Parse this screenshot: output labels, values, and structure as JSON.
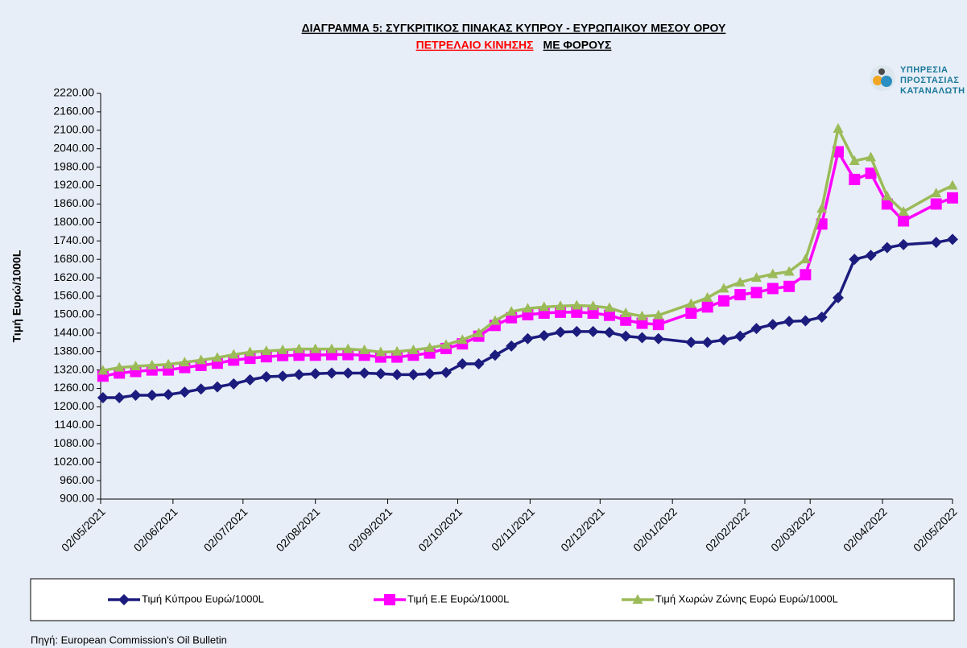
{
  "chart_data": {
    "type": "line",
    "title": "ΔΙΑΓΡΑΜΜΑ 5: ΣΥΓΚΡΙΤΙΚΟΣ ΠΙΝΑΚΑΣ ΚΥΠΡΟΥ - ΕΥΡΩΠΑΙΚΟΥ ΜΕΣΟΥ ΟΡΟΥ",
    "subtitle": [
      "ΠΕΤΡΕΛΑΙΟ ΚΙΝΗΣΗΣ",
      "ΜΕ  ΦΟΡΟΥΣ"
    ],
    "subtitle_colors": [
      "#ff0000",
      "#000000"
    ],
    "logo": [
      "ΥΠΗΡΕΣΙΑ",
      "ΠΡΟΣΤΑΣΙΑΣ",
      "ΚΑΤΑΝΑΛΩΤΗ"
    ],
    "y_label": "Τιμή Ευρώ/1000L",
    "source": "Πηγή: European Commission's Oil Bulletin",
    "x": [
      "03/05/2021",
      "10/05/2021",
      "17/05/2021",
      "24/05/2021",
      "31/05/2021",
      "07/06/2021",
      "14/06/2021",
      "21/06/2021",
      "28/06/2021",
      "05/07/2021",
      "12/07/2021",
      "19/07/2021",
      "26/07/2021",
      "02/08/2021",
      "09/08/2021",
      "16/08/2021",
      "23/08/2021",
      "30/08/2021",
      "06/09/2021",
      "13/09/2021",
      "20/09/2021",
      "27/09/2021",
      "04/10/2021",
      "11/10/2021",
      "18/10/2021",
      "25/10/2021",
      "01/11/2021",
      "08/11/2021",
      "15/11/2021",
      "22/11/2021",
      "29/11/2021",
      "06/12/2021",
      "13/12/2021",
      "20/12/2021",
      "27/12/2021",
      "10/01/2022",
      "17/01/2022",
      "24/01/2022",
      "31/01/2022",
      "07/02/2022",
      "14/02/2022",
      "21/02/2022",
      "28/02/2022",
      "07/03/2022",
      "14/03/2022",
      "21/03/2022",
      "28/03/2022",
      "04/04/2022",
      "11/04/2022",
      "25/04/2022",
      "02/05/2022"
    ],
    "series": [
      {
        "name": "Τιμή Κύπρου Ευρώ/1000L",
        "color": "#1c1c7e",
        "marker": "diamond",
        "values": [
          1230,
          1230,
          1238,
          1238,
          1240,
          1248,
          1258,
          1265,
          1275,
          1288,
          1298,
          1300,
          1305,
          1308,
          1310,
          1310,
          1310,
          1308,
          1305,
          1305,
          1308,
          1312,
          1340,
          1340,
          1368,
          1398,
          1422,
          1432,
          1443,
          1445,
          1445,
          1442,
          1430,
          1425,
          1422,
          1410,
          1410,
          1418,
          1430,
          1455,
          1468,
          1478,
          1480,
          1492,
          1555,
          1680,
          1693,
          1718,
          1728,
          1735,
          1745
        ]
      },
      {
        "name": "Τιμή Ε.Ε Ευρώ/1000L",
        "color": "#ff00ff",
        "marker": "square",
        "values": [
          1300,
          1310,
          1315,
          1320,
          1320,
          1328,
          1335,
          1342,
          1352,
          1358,
          1363,
          1367,
          1368,
          1368,
          1370,
          1370,
          1368,
          1362,
          1362,
          1368,
          1375,
          1390,
          1405,
          1430,
          1465,
          1490,
          1500,
          1505,
          1508,
          1508,
          1505,
          1498,
          1482,
          1472,
          1468,
          1505,
          1525,
          1545,
          1565,
          1572,
          1585,
          1592,
          1630,
          1795,
          2030,
          1940,
          1960,
          1860,
          1805,
          1860,
          1880
        ]
      },
      {
        "name": "Τιμή Χωρών Ζώνης Ευρώ Ευρώ/1000L",
        "color": "#9bbb59",
        "marker": "triangle",
        "values": [
          1318,
          1328,
          1332,
          1335,
          1338,
          1345,
          1352,
          1360,
          1370,
          1378,
          1382,
          1385,
          1388,
          1388,
          1388,
          1388,
          1385,
          1378,
          1380,
          1385,
          1392,
          1402,
          1418,
          1440,
          1480,
          1510,
          1520,
          1525,
          1528,
          1530,
          1528,
          1522,
          1505,
          1495,
          1498,
          1535,
          1555,
          1585,
          1605,
          1620,
          1632,
          1640,
          1680,
          1845,
          2105,
          2000,
          2012,
          1885,
          1835,
          1895,
          1920
        ]
      }
    ],
    "xlim": [
      "02/05/2021",
      "02/05/2022"
    ],
    "xticks": [
      "02/05/2021",
      "02/06/2021",
      "02/07/2021",
      "02/08/2021",
      "02/09/2021",
      "02/10/2021",
      "02/11/2021",
      "02/12/2021",
      "02/01/2022",
      "02/02/2022",
      "02/03/2022",
      "02/04/2022",
      "02/05/2022"
    ],
    "ylim": [
      900,
      2220
    ],
    "yticks": [
      {
        "value": 900,
        "label": "900.00"
      },
      {
        "value": 960,
        "label": "960.00"
      },
      {
        "value": 1020,
        "label": "1020.00"
      },
      {
        "value": 1080,
        "label": "1080.00"
      },
      {
        "value": 1140,
        "label": "1140.00"
      },
      {
        "value": 1200,
        "label": "1200.00"
      },
      {
        "value": 1260,
        "label": "1260.00"
      },
      {
        "value": 1320,
        "label": "1320.00"
      },
      {
        "value": 1380,
        "label": "1380.00"
      },
      {
        "value": 1440,
        "label": "1440.00"
      },
      {
        "value": 1500,
        "label": "1500.00"
      },
      {
        "value": 1560,
        "label": "1560.00"
      },
      {
        "value": 1620,
        "label": "1620.00"
      },
      {
        "value": 1680,
        "label": "1680.00"
      },
      {
        "value": 1740,
        "label": "1740.00"
      },
      {
        "value": 1800,
        "label": "1800.00"
      },
      {
        "value": 1860,
        "label": "1860.00"
      },
      {
        "value": 1920,
        "label": "1920.00"
      },
      {
        "value": 1980,
        "label": "1980.00"
      },
      {
        "value": 2040,
        "label": "2040.00"
      },
      {
        "value": 2100,
        "label": "2100.00"
      },
      {
        "value": 2160,
        "label": "2160.00"
      },
      {
        "value": 2220,
        "label": "2220.00"
      }
    ],
    "grid": false,
    "legend": "bottom"
  }
}
